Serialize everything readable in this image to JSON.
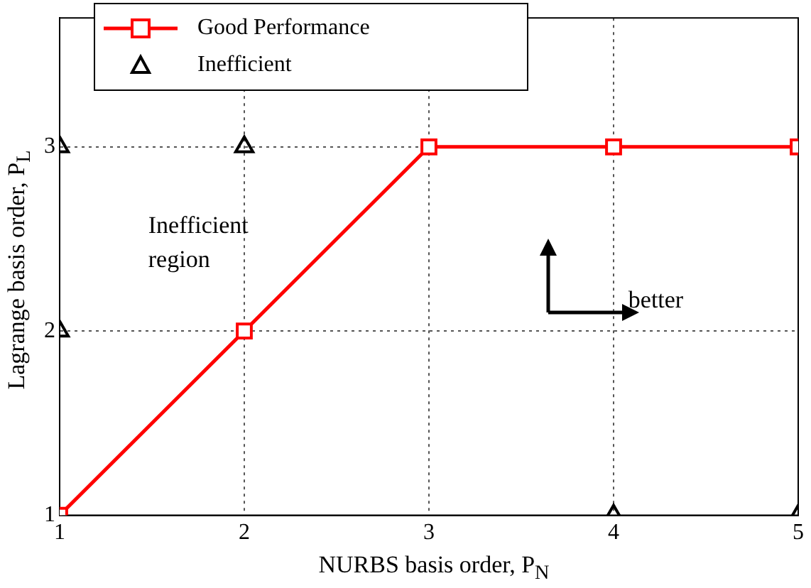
{
  "chart_data": {
    "type": "line",
    "xlabel": "NURBS basis order, P$_{N}$",
    "ylabel": "Lagrange basis order, P$_{L}$",
    "xlim": [
      1,
      5
    ],
    "xticks": [
      1,
      2,
      3,
      4,
      5
    ],
    "ylim": [
      1,
      3.7
    ],
    "yticks": [
      1,
      2,
      3
    ],
    "grid": true,
    "legend": "top left",
    "series": [
      {
        "name": "Good Performance",
        "type": "line",
        "color": "#ff0000",
        "marker": "square",
        "line_style": "solid",
        "x": [
          1,
          2,
          3,
          4,
          5
        ],
        "values": [
          1,
          2,
          3,
          3,
          3
        ]
      },
      {
        "name": "Inefficient",
        "type": "scatter",
        "color": "#000000",
        "marker": "triangle",
        "x": [
          1,
          2,
          1,
          4,
          5
        ],
        "values": [
          3,
          3,
          2,
          1,
          1
        ]
      }
    ],
    "annotations": [
      "Inefficient region",
      "better"
    ]
  }
}
